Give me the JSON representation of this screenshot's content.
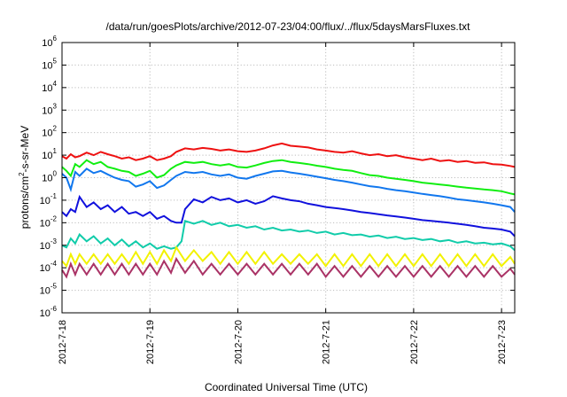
{
  "chart_data": {
    "type": "line",
    "title": "/data/run/goesPlots/archive/2012-07-23/04:00/flux/../flux/5daysMarsFluxes.txt",
    "xlabel": "Coordinated Universal Time (UTC)",
    "ylabel": "protons/cm²-s-sr-MeV",
    "ylabel_prefix": "protons/cm",
    "ylabel_superscript": "2",
    "ylabel_suffix": "-s-sr-MeV",
    "y_scale": "log",
    "ylim": [
      1e-06,
      1000000
    ],
    "xlim": [
      0.0,
      5.15
    ],
    "grid": true,
    "x_ticks": [
      {
        "value": 0,
        "label": "2012-7-18"
      },
      {
        "value": 1,
        "label": "2012-7-19"
      },
      {
        "value": 2,
        "label": "2012-7-20"
      },
      {
        "value": 3,
        "label": "2012-7-21"
      },
      {
        "value": 4,
        "label": "2012-7-22"
      },
      {
        "value": 5,
        "label": "2012-7-23"
      }
    ],
    "y_ticks": [
      {
        "value": 1e-06,
        "base": "10",
        "exp": "-6"
      },
      {
        "value": 1e-05,
        "base": "10",
        "exp": "-5"
      },
      {
        "value": 0.0001,
        "base": "10",
        "exp": "-4"
      },
      {
        "value": 0.001,
        "base": "10",
        "exp": "-3"
      },
      {
        "value": 0.01,
        "base": "10",
        "exp": "-2"
      },
      {
        "value": 0.1,
        "base": "10",
        "exp": "-1"
      },
      {
        "value": 1,
        "base": "10",
        "exp": "0"
      },
      {
        "value": 10,
        "base": "10",
        "exp": "1"
      },
      {
        "value": 100,
        "base": "10",
        "exp": "2"
      },
      {
        "value": 1000,
        "base": "10",
        "exp": "3"
      },
      {
        "value": 10000,
        "base": "10",
        "exp": "4"
      },
      {
        "value": 100000,
        "base": "10",
        "exp": "5"
      },
      {
        "value": 1000000,
        "base": "10",
        "exp": "6"
      }
    ],
    "series": [
      {
        "color": "#ee1111",
        "x": [
          0.0,
          0.05,
          0.1,
          0.15,
          0.2,
          0.28,
          0.36,
          0.44,
          0.52,
          0.6,
          0.68,
          0.76,
          0.84,
          0.92,
          1.0,
          1.08,
          1.16,
          1.24,
          1.3,
          1.4,
          1.5,
          1.6,
          1.7,
          1.8,
          1.9,
          2.0,
          2.1,
          2.2,
          2.3,
          2.4,
          2.5,
          2.6,
          2.7,
          2.8,
          2.9,
          3.0,
          3.1,
          3.2,
          3.3,
          3.4,
          3.5,
          3.6,
          3.7,
          3.8,
          3.9,
          4.0,
          4.1,
          4.2,
          4.3,
          4.4,
          4.5,
          4.6,
          4.7,
          4.8,
          4.9,
          5.0,
          5.1,
          5.15
        ],
        "y": [
          9,
          7,
          11,
          8,
          9,
          13,
          10,
          14,
          11,
          9,
          7,
          8,
          6,
          7,
          9,
          6,
          7,
          9,
          14,
          20,
          18,
          21,
          19,
          16,
          18,
          15,
          14,
          16,
          20,
          27,
          33,
          26,
          24,
          22,
          18,
          16,
          14,
          13,
          15,
          12,
          10,
          11,
          9,
          10,
          8,
          7,
          6,
          7,
          5.5,
          6,
          5,
          5.5,
          4.6,
          4.8,
          4,
          3.8,
          3.3,
          3
        ]
      },
      {
        "color": "#11ee11",
        "x": [
          0.0,
          0.05,
          0.1,
          0.15,
          0.2,
          0.28,
          0.36,
          0.44,
          0.52,
          0.6,
          0.68,
          0.76,
          0.84,
          0.92,
          1.0,
          1.08,
          1.16,
          1.24,
          1.3,
          1.4,
          1.5,
          1.6,
          1.7,
          1.8,
          1.9,
          2.0,
          2.1,
          2.2,
          2.3,
          2.4,
          2.5,
          2.6,
          2.7,
          2.8,
          2.9,
          3.0,
          3.1,
          3.2,
          3.3,
          3.4,
          3.5,
          3.6,
          3.7,
          3.8,
          3.9,
          4.0,
          4.1,
          4.2,
          4.3,
          4.4,
          4.5,
          4.6,
          4.7,
          4.8,
          4.9,
          5.0,
          5.1,
          5.15
        ],
        "y": [
          3,
          2,
          1.2,
          4,
          3,
          6,
          4,
          5,
          3,
          2.5,
          2,
          1.8,
          1.2,
          1.5,
          2,
          1,
          1.3,
          2.5,
          3.5,
          5,
          4.5,
          5,
          4,
          3.5,
          4,
          3,
          2.8,
          3.5,
          4.5,
          5.5,
          6,
          5,
          4.5,
          4,
          3.4,
          3,
          2.5,
          2.2,
          2,
          1.6,
          1.3,
          1.2,
          1,
          0.9,
          0.8,
          0.7,
          0.6,
          0.55,
          0.5,
          0.45,
          0.4,
          0.36,
          0.33,
          0.3,
          0.28,
          0.25,
          0.2,
          0.18
        ]
      },
      {
        "color": "#1177ee",
        "x": [
          0.0,
          0.05,
          0.1,
          0.15,
          0.2,
          0.28,
          0.36,
          0.44,
          0.52,
          0.6,
          0.68,
          0.76,
          0.84,
          0.92,
          1.0,
          1.08,
          1.16,
          1.24,
          1.3,
          1.4,
          1.5,
          1.6,
          1.7,
          1.8,
          1.9,
          2.0,
          2.1,
          2.2,
          2.3,
          2.4,
          2.5,
          2.6,
          2.7,
          2.8,
          2.9,
          3.0,
          3.1,
          3.2,
          3.3,
          3.4,
          3.5,
          3.6,
          3.7,
          3.8,
          3.9,
          4.0,
          4.1,
          4.2,
          4.3,
          4.4,
          4.5,
          4.6,
          4.7,
          4.8,
          4.9,
          5.0,
          5.1,
          5.15
        ],
        "y": [
          1.5,
          1,
          0.3,
          1.8,
          1.2,
          2.5,
          1.6,
          2,
          1.4,
          1,
          0.8,
          0.7,
          0.4,
          0.5,
          0.7,
          0.35,
          0.45,
          0.8,
          1.2,
          1.8,
          1.6,
          1.8,
          1.4,
          1.2,
          1.4,
          1.0,
          0.9,
          1.2,
          1.5,
          1.9,
          2.0,
          1.7,
          1.5,
          1.3,
          1.1,
          0.95,
          0.8,
          0.7,
          0.6,
          0.5,
          0.42,
          0.38,
          0.32,
          0.28,
          0.25,
          0.22,
          0.19,
          0.17,
          0.15,
          0.13,
          0.11,
          0.1,
          0.09,
          0.08,
          0.07,
          0.06,
          0.05,
          0.03
        ]
      },
      {
        "color": "#1111dd",
        "x": [
          0.0,
          0.05,
          0.1,
          0.15,
          0.2,
          0.28,
          0.36,
          0.44,
          0.52,
          0.6,
          0.68,
          0.76,
          0.84,
          0.92,
          1.0,
          1.08,
          1.16,
          1.24,
          1.3,
          1.36,
          1.4,
          1.5,
          1.6,
          1.7,
          1.8,
          1.9,
          2.0,
          2.1,
          2.2,
          2.3,
          2.4,
          2.5,
          2.6,
          2.7,
          2.8,
          2.9,
          3.0,
          3.1,
          3.2,
          3.3,
          3.4,
          3.5,
          3.6,
          3.7,
          3.8,
          3.9,
          4.0,
          4.1,
          4.2,
          4.3,
          4.4,
          4.5,
          4.6,
          4.7,
          4.8,
          4.9,
          5.0,
          5.1,
          5.15
        ],
        "y": [
          0.03,
          0.02,
          0.04,
          0.03,
          0.14,
          0.05,
          0.08,
          0.04,
          0.06,
          0.03,
          0.05,
          0.025,
          0.03,
          0.02,
          0.03,
          0.015,
          0.02,
          0.012,
          0.01,
          0.01,
          0.04,
          0.11,
          0.08,
          0.14,
          0.1,
          0.12,
          0.08,
          0.1,
          0.07,
          0.09,
          0.15,
          0.12,
          0.1,
          0.09,
          0.07,
          0.06,
          0.05,
          0.045,
          0.04,
          0.035,
          0.03,
          0.027,
          0.024,
          0.021,
          0.019,
          0.017,
          0.015,
          0.013,
          0.012,
          0.011,
          0.01,
          0.009,
          0.008,
          0.007,
          0.006,
          0.0055,
          0.005,
          0.004,
          0.0025
        ]
      },
      {
        "color": "#11ccaa",
        "x": [
          0.0,
          0.05,
          0.1,
          0.15,
          0.2,
          0.28,
          0.36,
          0.44,
          0.52,
          0.6,
          0.68,
          0.76,
          0.84,
          0.92,
          1.0,
          1.08,
          1.16,
          1.24,
          1.3,
          1.36,
          1.4,
          1.5,
          1.6,
          1.7,
          1.8,
          1.9,
          2.0,
          2.1,
          2.2,
          2.3,
          2.4,
          2.5,
          2.6,
          2.7,
          2.8,
          2.9,
          3.0,
          3.1,
          3.2,
          3.3,
          3.4,
          3.5,
          3.6,
          3.7,
          3.8,
          3.9,
          4.0,
          4.1,
          4.2,
          4.3,
          4.4,
          4.5,
          4.6,
          4.7,
          4.8,
          4.9,
          5.0,
          5.1,
          5.15
        ],
        "y": [
          0.001,
          0.0008,
          0.002,
          0.0012,
          0.003,
          0.0015,
          0.0025,
          0.0012,
          0.002,
          0.001,
          0.0018,
          0.0009,
          0.0015,
          0.0008,
          0.0012,
          0.0007,
          0.0009,
          0.0007,
          0.0008,
          0.0015,
          0.012,
          0.009,
          0.012,
          0.008,
          0.01,
          0.007,
          0.008,
          0.006,
          0.007,
          0.005,
          0.006,
          0.0045,
          0.005,
          0.004,
          0.0045,
          0.0035,
          0.004,
          0.003,
          0.0035,
          0.0028,
          0.003,
          0.0024,
          0.0027,
          0.0021,
          0.0024,
          0.0019,
          0.0021,
          0.0017,
          0.0019,
          0.0015,
          0.0017,
          0.0013,
          0.0015,
          0.0012,
          0.0013,
          0.0011,
          0.0012,
          0.0009,
          0.0006
        ]
      },
      {
        "color": "#f2f200",
        "x": [
          0.0,
          0.05,
          0.1,
          0.15,
          0.2,
          0.28,
          0.36,
          0.44,
          0.52,
          0.6,
          0.68,
          0.76,
          0.84,
          0.92,
          1.0,
          1.08,
          1.16,
          1.24,
          1.3,
          1.4,
          1.5,
          1.6,
          1.7,
          1.8,
          1.9,
          2.0,
          2.1,
          2.2,
          2.3,
          2.4,
          2.5,
          2.6,
          2.7,
          2.8,
          2.9,
          3.0,
          3.1,
          3.2,
          3.3,
          3.4,
          3.5,
          3.6,
          3.7,
          3.8,
          3.9,
          4.0,
          4.1,
          4.2,
          4.3,
          4.4,
          4.5,
          4.6,
          4.7,
          4.8,
          4.9,
          5.0,
          5.1,
          5.15
        ],
        "y": [
          0.0002,
          0.00012,
          0.0004,
          0.00015,
          0.0004,
          0.00015,
          0.0004,
          0.00015,
          0.0004,
          0.00015,
          0.0004,
          0.00015,
          0.0005,
          0.00015,
          0.0005,
          0.00015,
          0.0006,
          0.0002,
          0.0008,
          0.0002,
          0.0006,
          0.0002,
          0.0005,
          0.00015,
          0.0005,
          0.00015,
          0.0005,
          0.00015,
          0.0005,
          0.00015,
          0.0004,
          0.00015,
          0.0004,
          0.00015,
          0.0004,
          0.00012,
          0.0004,
          0.00012,
          0.0004,
          0.00012,
          0.0004,
          0.00012,
          0.0004,
          0.00012,
          0.0004,
          0.00012,
          0.0004,
          0.00012,
          0.0004,
          0.00012,
          0.0004,
          0.00012,
          0.0004,
          0.00012,
          0.0004,
          0.00012,
          0.0003,
          0.00015
        ]
      },
      {
        "color": "#aa3366",
        "x": [
          0.0,
          0.05,
          0.1,
          0.15,
          0.2,
          0.28,
          0.36,
          0.44,
          0.52,
          0.6,
          0.68,
          0.76,
          0.84,
          0.92,
          1.0,
          1.08,
          1.16,
          1.24,
          1.3,
          1.4,
          1.5,
          1.6,
          1.7,
          1.8,
          1.9,
          2.0,
          2.1,
          2.2,
          2.3,
          2.4,
          2.5,
          2.6,
          2.7,
          2.8,
          2.9,
          3.0,
          3.1,
          3.2,
          3.3,
          3.4,
          3.5,
          3.6,
          3.7,
          3.8,
          3.9,
          4.0,
          4.1,
          4.2,
          4.3,
          4.4,
          4.5,
          4.6,
          4.7,
          4.8,
          4.9,
          5.0,
          5.1,
          5.15
        ],
        "y": [
          8e-05,
          4e-05,
          0.00015,
          5e-05,
          0.00015,
          5e-05,
          0.00015,
          5e-05,
          0.00015,
          5e-05,
          0.00015,
          5e-05,
          0.00015,
          5e-05,
          0.00015,
          5e-05,
          0.0002,
          6e-05,
          0.00025,
          6e-05,
          0.0002,
          5e-05,
          0.00015,
          5e-05,
          0.00015,
          5e-05,
          0.00015,
          5e-05,
          0.00015,
          5e-05,
          0.00015,
          5e-05,
          0.00015,
          5e-05,
          0.00015,
          4e-05,
          0.00012,
          4e-05,
          0.00012,
          4e-05,
          0.00012,
          4e-05,
          0.00012,
          4e-05,
          0.00012,
          4e-05,
          0.00012,
          4e-05,
          0.00012,
          4e-05,
          0.00012,
          4e-05,
          0.00012,
          4e-05,
          0.00012,
          4e-05,
          9e-05,
          5e-05
        ]
      }
    ]
  }
}
